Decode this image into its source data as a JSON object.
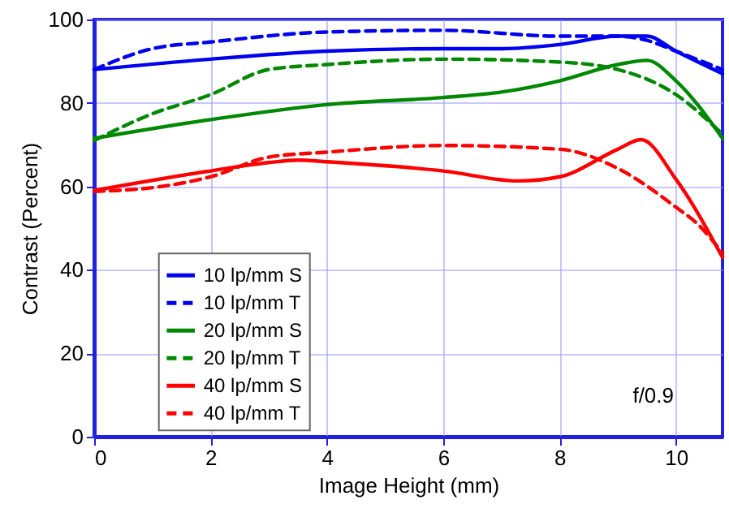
{
  "chart_data": {
    "type": "line",
    "xlabel": "Image Height (mm)",
    "ylabel": "Contrast (Percent)",
    "xlim": [
      0,
      10.8
    ],
    "ylim": [
      0,
      100
    ],
    "xticks": [
      0,
      2,
      4,
      6,
      8,
      10
    ],
    "yticks": [
      0,
      20,
      40,
      60,
      80,
      100
    ],
    "grid": true,
    "legend": "bottom left",
    "marker": "none",
    "annotations": [
      "f/0.9"
    ],
    "series": [
      {
        "name": "10 lp/mm S",
        "color": "#0000ee",
        "line_style": "solid",
        "x": [
          0,
          2,
          4,
          6,
          7,
          8,
          9,
          9.5,
          10,
          10.8
        ],
        "values": [
          88,
          90.5,
          92.4,
          93,
          93,
          94,
          96,
          96,
          92.4,
          87
        ]
      },
      {
        "name": "10 lp/mm T",
        "color": "#0000ee",
        "line_style": "dashed",
        "x": [
          0,
          1,
          2,
          4,
          6,
          8,
          9,
          9.5,
          10,
          10.8
        ],
        "values": [
          88,
          93,
          94.6,
          97,
          97.4,
          96,
          96,
          95,
          92.4,
          88
        ]
      },
      {
        "name": "20 lp/mm S",
        "color": "#008800",
        "line_style": "solid",
        "x": [
          0,
          2,
          4,
          6,
          7,
          8,
          9,
          9.5,
          10,
          10.8
        ],
        "values": [
          71.5,
          76,
          79.6,
          81.3,
          82.6,
          85.3,
          89.2,
          90.2,
          85.3,
          71.5
        ]
      },
      {
        "name": "20 lp/mm T",
        "color": "#008800",
        "line_style": "dashed",
        "x": [
          0,
          1,
          2,
          3,
          4,
          6,
          8,
          9,
          10,
          10.8
        ],
        "values": [
          71,
          77.4,
          82,
          88,
          89.2,
          90.5,
          89.8,
          88,
          82,
          72.5
        ]
      },
      {
        "name": "40 lp/mm S",
        "color": "#ff0000",
        "line_style": "solid",
        "x": [
          0,
          2,
          3,
          3.5,
          4,
          6,
          7.3,
          8,
          9,
          9.4,
          10,
          10.8
        ],
        "values": [
          59,
          63.7,
          65.7,
          66.3,
          65.9,
          63.7,
          61.3,
          62.3,
          68.9,
          71.2,
          61.7,
          43
        ]
      },
      {
        "name": "40 lp/mm T",
        "color": "#ff0000",
        "line_style": "dashed",
        "x": [
          0,
          1,
          2,
          3,
          4,
          6,
          8,
          9,
          10,
          10.4,
          10.8
        ],
        "values": [
          58.8,
          59.7,
          62.3,
          67,
          68.2,
          69.8,
          68.9,
          64.3,
          55,
          50.6,
          44
        ]
      }
    ]
  }
}
